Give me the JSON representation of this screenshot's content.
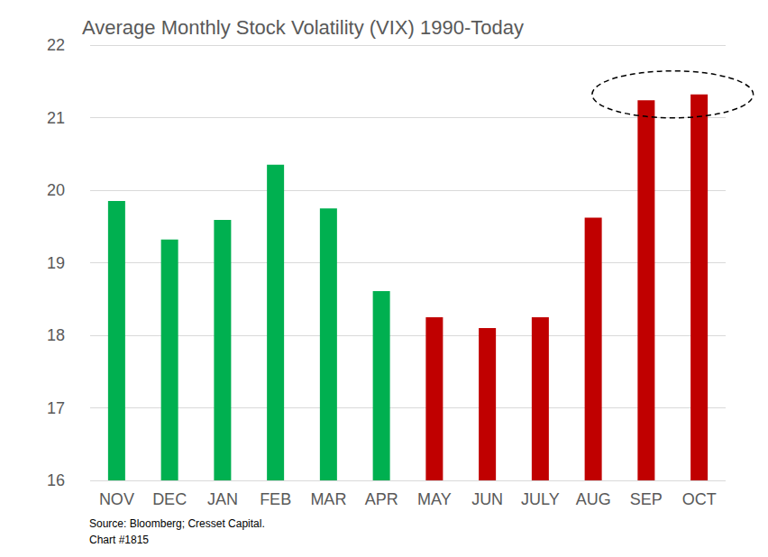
{
  "chart_data": {
    "type": "bar",
    "title": "Average Monthly Stock Volatility (VIX) 1990-Today",
    "source": "Source: Bloomberg; Cresset Capital.",
    "note": "Chart #1815",
    "categories": [
      "NOV",
      "DEC",
      "JAN",
      "FEB",
      "MAR",
      "APR",
      "MAY",
      "JUN",
      "JULY",
      "AUG",
      "SEP",
      "OCT"
    ],
    "values": [
      19.85,
      19.32,
      19.59,
      20.35,
      19.75,
      18.61,
      18.25,
      18.1,
      18.25,
      19.62,
      21.24,
      21.32
    ],
    "colors": [
      "#00b050",
      "#00b050",
      "#00b050",
      "#00b050",
      "#00b050",
      "#00b050",
      "#c00000",
      "#c00000",
      "#c00000",
      "#c00000",
      "#c00000",
      "#c00000"
    ],
    "ylim": [
      16,
      22
    ],
    "yticks": [
      16,
      17,
      18,
      19,
      20,
      21,
      22
    ],
    "grid": true
  }
}
